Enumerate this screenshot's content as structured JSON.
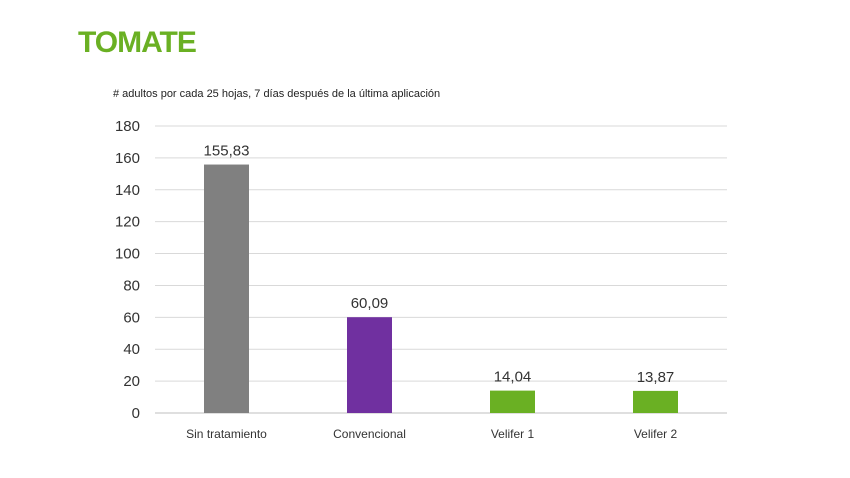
{
  "header": {
    "title": "TOMATE",
    "subtitle": "# adultos por cada 25 hojas, 7 días después de la última aplicación"
  },
  "colors": {
    "title": "#6ab023",
    "gridline": "#d9d9d9",
    "axis": "#bfbfbf"
  },
  "chart_data": {
    "type": "bar",
    "title": "",
    "xlabel": "",
    "ylabel": "",
    "categories": [
      "Sin tratamiento",
      "Convencional",
      "Velifer 1",
      "Velifer 2"
    ],
    "values": [
      155.83,
      60.09,
      14.04,
      13.87
    ],
    "data_labels": [
      "155,83",
      "60,09",
      "14,04",
      "13,87"
    ],
    "bar_colors": [
      "#808080",
      "#7030a0",
      "#6ab023",
      "#6ab023"
    ],
    "ylim": [
      0,
      180
    ],
    "yticks": [
      0,
      20,
      40,
      60,
      80,
      100,
      120,
      140,
      160,
      180
    ],
    "grid": true,
    "legend": "none"
  }
}
